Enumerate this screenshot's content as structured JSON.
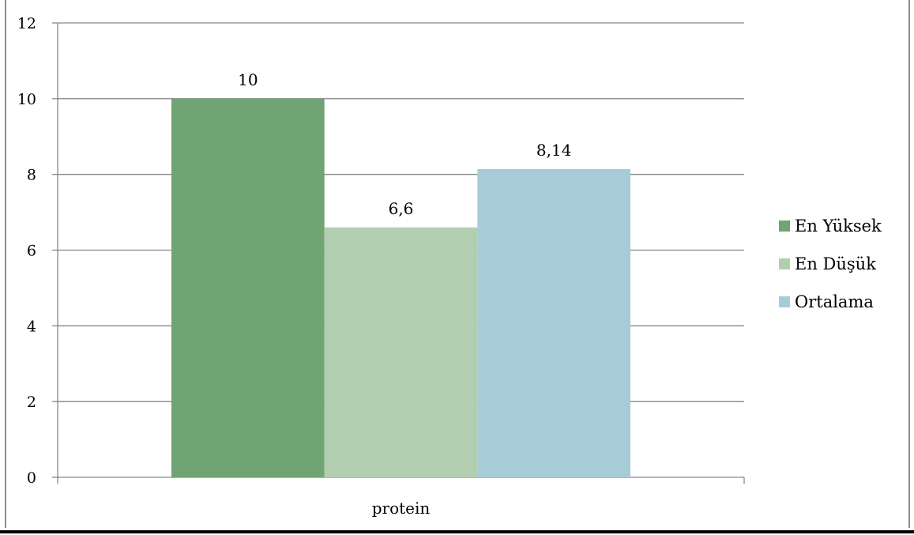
{
  "chart_data": {
    "type": "bar",
    "categories": [
      "protein"
    ],
    "series": [
      {
        "name": "En Yüksek",
        "values": [
          10
        ],
        "label": "10",
        "color": "#70a473"
      },
      {
        "name": "En Düşük",
        "values": [
          6.6
        ],
        "label": "6,6",
        "color": "#b2ceb0"
      },
      {
        "name": "Ortalama",
        "values": [
          8.14
        ],
        "label": "8,14",
        "color": "#a8ccd7"
      }
    ],
    "ylim": [
      0,
      12
    ],
    "yticks": [
      0,
      2,
      4,
      6,
      8,
      10,
      12
    ],
    "ytick_labels": [
      "0",
      "2",
      "4",
      "6",
      "8",
      "10",
      "12"
    ],
    "grid": true,
    "legend_position": "right",
    "title": "",
    "xlabel": "",
    "ylabel": ""
  },
  "colors": {
    "grid": "#868686",
    "axis": "#868686"
  }
}
